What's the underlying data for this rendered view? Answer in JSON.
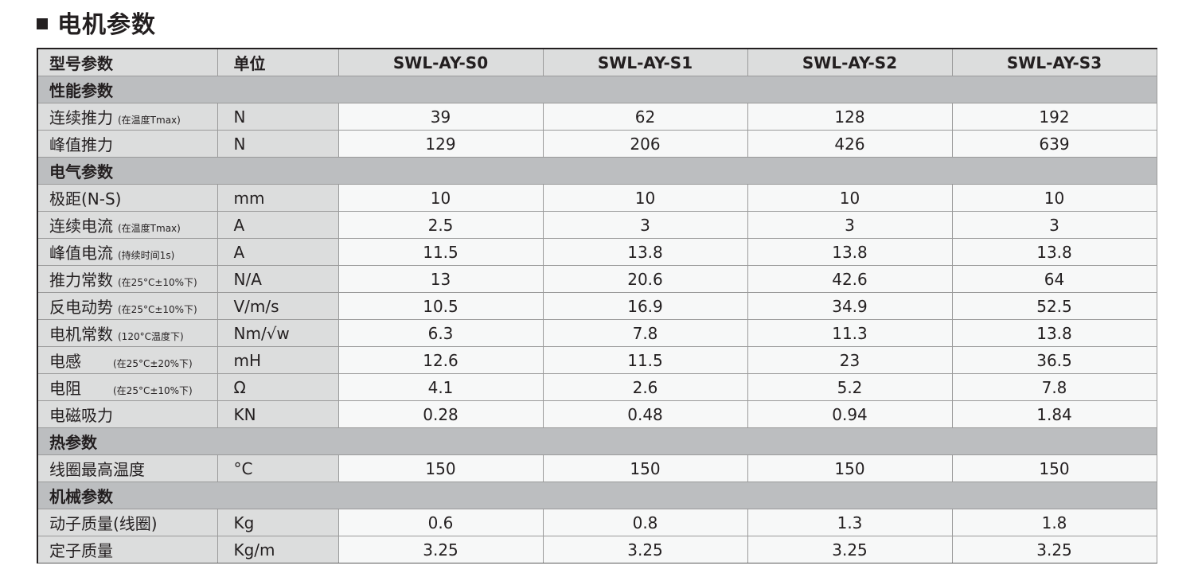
{
  "title": "电机参数",
  "header": {
    "col_model": "型号参数",
    "col_unit": "单位",
    "models": [
      "SWL-AY-S0",
      "SWL-AY-S1",
      "SWL-AY-S2",
      "SWL-AY-S3"
    ]
  },
  "sections": [
    {
      "name": "性能参数",
      "rows": [
        {
          "name": "连续推力",
          "note": "(在温度Tmax)",
          "unit": "N",
          "values": [
            "39",
            "62",
            "128",
            "192"
          ]
        },
        {
          "name": "峰值推力",
          "note": "",
          "unit": "N",
          "values": [
            "129",
            "206",
            "426",
            "639"
          ]
        }
      ]
    },
    {
      "name": "电气参数",
      "rows": [
        {
          "name": "极距(N-S)",
          "note": "",
          "unit": "mm",
          "values": [
            "10",
            "10",
            "10",
            "10"
          ]
        },
        {
          "name": "连续电流",
          "note": "(在温度Tmax)",
          "unit": "A",
          "values": [
            "2.5",
            "3",
            "3",
            "3"
          ]
        },
        {
          "name": "峰值电流",
          "note": "(持续时间1s)",
          "unit": "A",
          "values": [
            "11.5",
            "13.8",
            "13.8",
            "13.8"
          ]
        },
        {
          "name": "推力常数",
          "note": "(在25°C±10%下)",
          "unit": "N/A",
          "values": [
            "13",
            "20.6",
            "42.6",
            "64"
          ]
        },
        {
          "name": "反电动势",
          "note": "(在25°C±10%下)",
          "unit": "V/m/s",
          "values": [
            "10.5",
            "16.9",
            "34.9",
            "52.5"
          ]
        },
        {
          "name": "电机常数",
          "note": "(120°C温度下)",
          "unit": "Nm/√w",
          "values": [
            "6.3",
            "7.8",
            "11.3",
            "13.8"
          ]
        },
        {
          "name": "电感",
          "note": "(在25°C±20%下)",
          "unit": "mH",
          "values": [
            "12.6",
            "11.5",
            "23",
            "36.5"
          ]
        },
        {
          "name": "电阻",
          "note": "(在25°C±10%下)",
          "unit": "Ω",
          "values": [
            "4.1",
            "2.6",
            "5.2",
            "7.8"
          ]
        },
        {
          "name": "电磁吸力",
          "note": "",
          "unit": "KN",
          "values": [
            "0.28",
            "0.48",
            "0.94",
            "1.84"
          ]
        }
      ]
    },
    {
      "name": "热参数",
      "rows": [
        {
          "name": "线圈最高温度",
          "note": "",
          "unit": "°C",
          "values": [
            "150",
            "150",
            "150",
            "150"
          ]
        }
      ]
    },
    {
      "name": "机械参数",
      "rows": [
        {
          "name": "动子质量(线圈)",
          "note": "",
          "unit": "Kg",
          "values": [
            "0.6",
            "0.8",
            "1.3",
            "1.8"
          ]
        },
        {
          "name": "定子质量",
          "note": "",
          "unit": "Kg/m",
          "values": [
            "3.25",
            "3.25",
            "3.25",
            "3.25"
          ]
        }
      ]
    }
  ]
}
